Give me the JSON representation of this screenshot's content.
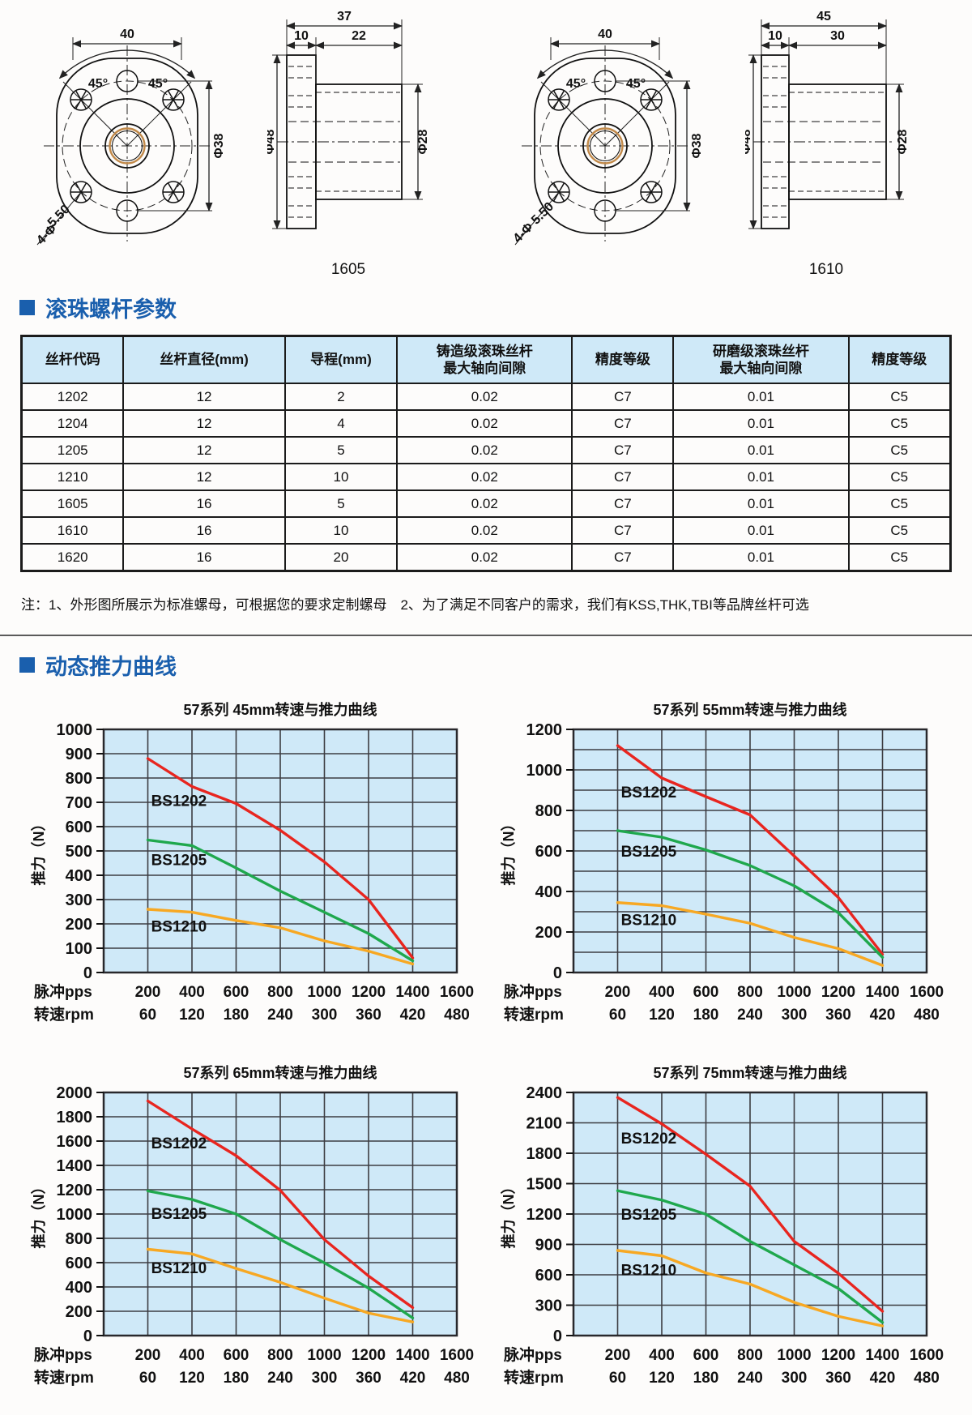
{
  "drawings": {
    "left": {
      "caption": "1605",
      "front": {
        "width": "40",
        "angle_left": "45°",
        "angle_right": "45°",
        "bolt_circle": "Φ38",
        "note1": "5.50",
        "note2": "4-Φ"
      },
      "side": {
        "total": "37",
        "flange": "10",
        "body": "22",
        "od": "Φ48",
        "body_od": "Φ28"
      }
    },
    "right": {
      "caption": "1610",
      "front": {
        "width": "40",
        "angle_left": "45°",
        "angle_right": "45°",
        "bolt_circle": "Φ38",
        "note1": "4-Φ 5.50",
        "note2": ""
      },
      "side": {
        "total": "45",
        "flange": "10",
        "body": "30",
        "od": "Φ48",
        "body_od": "Φ28"
      }
    }
  },
  "params_section": {
    "title": "滚珠螺杆参数",
    "table": {
      "headers": [
        [
          "丝杆代码"
        ],
        [
          "丝杆直径(mm)"
        ],
        [
          "导程(mm)"
        ],
        [
          "铸造级滚珠丝杆",
          "最大轴向间隙"
        ],
        [
          "精度等级"
        ],
        [
          "研磨级滚珠丝杆",
          "最大轴向间隙"
        ],
        [
          "精度等级"
        ]
      ],
      "rows": [
        [
          "1202",
          "12",
          "2",
          "0.02",
          "C7",
          "0.01",
          "C5"
        ],
        [
          "1204",
          "12",
          "4",
          "0.02",
          "C7",
          "0.01",
          "C5"
        ],
        [
          "1205",
          "12",
          "5",
          "0.02",
          "C7",
          "0.01",
          "C5"
        ],
        [
          "1210",
          "12",
          "10",
          "0.02",
          "C7",
          "0.01",
          "C5"
        ],
        [
          "1605",
          "16",
          "5",
          "0.02",
          "C7",
          "0.01",
          "C5"
        ],
        [
          "1610",
          "16",
          "10",
          "0.02",
          "C7",
          "0.01",
          "C5"
        ],
        [
          "1620",
          "16",
          "20",
          "0.02",
          "C7",
          "0.01",
          "C5"
        ]
      ]
    },
    "note": "注：1、外形图所展示为标准螺母，可根据您的要求定制螺母　2、为了满足不同客户的需求，我们有KSS,THK,TBI等品牌丝杆可选"
  },
  "curves_section": {
    "title": "动态推力曲线"
  },
  "colors": {
    "accent_blue": "#1a5fad",
    "plot_bg": "#cfe9f8",
    "grid": "#3d3d42",
    "red": "#e8251f",
    "green": "#1fa84d",
    "orange": "#f7a823"
  },
  "chart_data": [
    {
      "id": "45mm",
      "type": "line",
      "title": "57系列 45mm转速与推力曲线",
      "ylabel": "推力（N）",
      "ymax": 1000,
      "grid_step": 100,
      "label_step": 100,
      "xmax": 1600,
      "x_grid_step": 200,
      "x": [
        200,
        400,
        600,
        800,
        1000,
        1200,
        1400
      ],
      "series": [
        {
          "name": "BS1202",
          "color": "#e8251f",
          "values": [
            880,
            765,
            695,
            585,
            455,
            300,
            60
          ]
        },
        {
          "name": "BS1205",
          "color": "#1fa84d",
          "values": [
            545,
            522,
            430,
            335,
            248,
            160,
            48
          ]
        },
        {
          "name": "BS1210",
          "color": "#f7a823",
          "values": [
            260,
            248,
            214,
            184,
            130,
            88,
            35
          ]
        }
      ],
      "x_rows": [
        {
          "label": "脉冲pps",
          "values": [
            "200",
            "400",
            "600",
            "800",
            "1000",
            "1200",
            "1400",
            "1600"
          ]
        },
        {
          "label": "转速rpm",
          "values": [
            "60",
            "120",
            "180",
            "240",
            "300",
            "360",
            "420",
            "480"
          ]
        }
      ]
    },
    {
      "id": "55mm",
      "type": "line",
      "title": "57系列 55mm转速与推力曲线",
      "ylabel": "推力（N）",
      "ymax": 1200,
      "grid_step": 100,
      "label_step": 200,
      "xmax": 1600,
      "x_grid_step": 200,
      "x": [
        200,
        400,
        600,
        800,
        1000,
        1200,
        1400
      ],
      "series": [
        {
          "name": "BS1202",
          "color": "#e8251f",
          "values": [
            1120,
            960,
            868,
            778,
            575,
            370,
            90
          ]
        },
        {
          "name": "BS1205",
          "color": "#1fa84d",
          "values": [
            700,
            668,
            605,
            528,
            428,
            295,
            75
          ]
        },
        {
          "name": "BS1210",
          "color": "#f7a823",
          "values": [
            345,
            330,
            288,
            243,
            173,
            118,
            35
          ]
        }
      ],
      "x_rows": [
        {
          "label": "脉冲pps",
          "values": [
            "200",
            "400",
            "600",
            "800",
            "1000",
            "1200",
            "1400",
            "1600"
          ]
        },
        {
          "label": "转速rpm",
          "values": [
            "60",
            "120",
            "180",
            "240",
            "300",
            "360",
            "420",
            "480"
          ]
        }
      ]
    },
    {
      "id": "65mm",
      "type": "line",
      "title": "57系列 65mm转速与推力曲线",
      "ylabel": "推力（N）",
      "ymax": 2000,
      "grid_step": 200,
      "label_step": 200,
      "xmax": 1600,
      "x_grid_step": 200,
      "x": [
        200,
        400,
        600,
        800,
        1000,
        1200,
        1400
      ],
      "series": [
        {
          "name": "BS1202",
          "color": "#e8251f",
          "values": [
            1930,
            1700,
            1480,
            1195,
            790,
            490,
            230
          ]
        },
        {
          "name": "BS1205",
          "color": "#1fa84d",
          "values": [
            1190,
            1120,
            1000,
            790,
            598,
            390,
            145
          ]
        },
        {
          "name": "BS1210",
          "color": "#f7a823",
          "values": [
            710,
            672,
            552,
            438,
            308,
            185,
            112
          ]
        }
      ],
      "x_rows": [
        {
          "label": "脉冲pps",
          "values": [
            "200",
            "400",
            "600",
            "800",
            "1000",
            "1200",
            "1400",
            "1600"
          ]
        },
        {
          "label": "转速rpm",
          "values": [
            "60",
            "120",
            "180",
            "240",
            "300",
            "360",
            "420",
            "480"
          ]
        }
      ]
    },
    {
      "id": "75mm",
      "type": "line",
      "title": "57系列 75mm转速与推力曲线",
      "ylabel": "推力（N）",
      "ymax": 2400,
      "grid_step": 300,
      "label_step": 300,
      "xmax": 1600,
      "x_grid_step": 200,
      "x": [
        200,
        400,
        600,
        800,
        1000,
        1200,
        1400
      ],
      "series": [
        {
          "name": "BS1202",
          "color": "#e8251f",
          "values": [
            2350,
            2090,
            1790,
            1475,
            930,
            615,
            240
          ]
        },
        {
          "name": "BS1205",
          "color": "#1fa84d",
          "values": [
            1430,
            1338,
            1198,
            930,
            698,
            465,
            130
          ]
        },
        {
          "name": "BS1210",
          "color": "#f7a823",
          "values": [
            840,
            788,
            618,
            508,
            328,
            190,
            95
          ]
        }
      ],
      "x_rows": [
        {
          "label": "脉冲pps",
          "values": [
            "200",
            "400",
            "600",
            "800",
            "1000",
            "1200",
            "1400",
            "1600"
          ]
        },
        {
          "label": "转速rpm",
          "values": [
            "60",
            "120",
            "180",
            "240",
            "300",
            "360",
            "420",
            "480"
          ]
        }
      ]
    }
  ]
}
